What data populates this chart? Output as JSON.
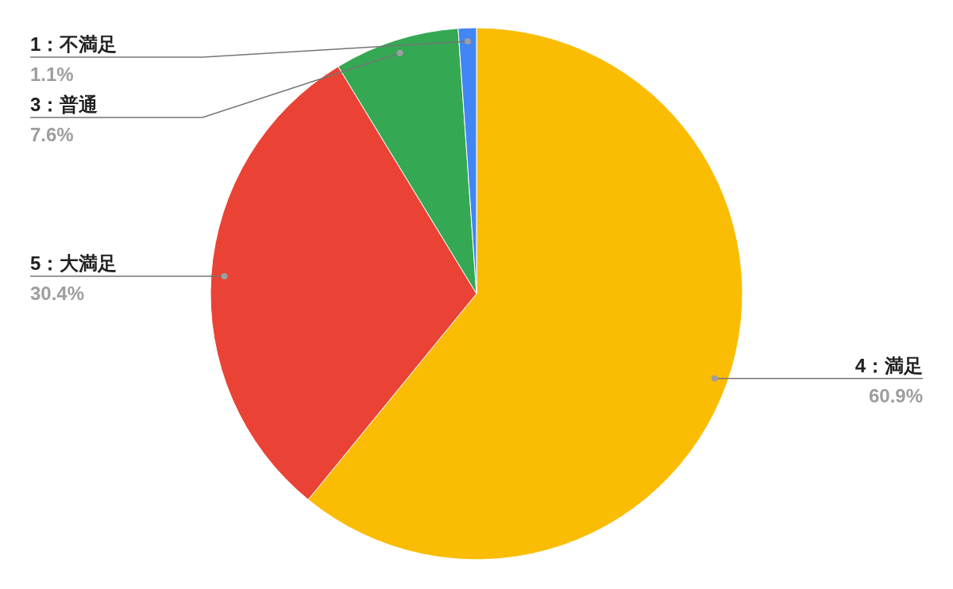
{
  "chart_data": {
    "type": "pie",
    "categories": [
      "4：満足",
      "5：大満足",
      "3：普通",
      "1：不満足"
    ],
    "values": [
      60.9,
      30.4,
      7.6,
      1.1
    ],
    "colors": [
      "#fbbc04",
      "#ea4335",
      "#34a853",
      "#4285f4"
    ],
    "value_labels": [
      "60.9%",
      "30.4%",
      "7.6%",
      "1.1%"
    ]
  }
}
